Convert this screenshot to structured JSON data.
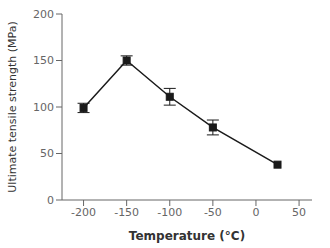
{
  "chart_data": {
    "type": "line",
    "x": [
      -200,
      -150,
      -100,
      -50,
      25
    ],
    "values": [
      99,
      150,
      111,
      78,
      38
    ],
    "yerr": [
      5,
      5,
      9,
      8,
      0
    ],
    "xlim": [
      -225,
      65
    ],
    "ylim": [
      0,
      200
    ],
    "xticks": [
      -200,
      -150,
      -100,
      -50,
      0,
      50
    ],
    "yticks": [
      0,
      50,
      100,
      150,
      200
    ],
    "xlabel": "Temperature (°C)",
    "ylabel": "Ultimate tensile strength (MPa)",
    "color": "#1a1a1a",
    "marker": "square",
    "line_style": "solid",
    "grid": false
  }
}
